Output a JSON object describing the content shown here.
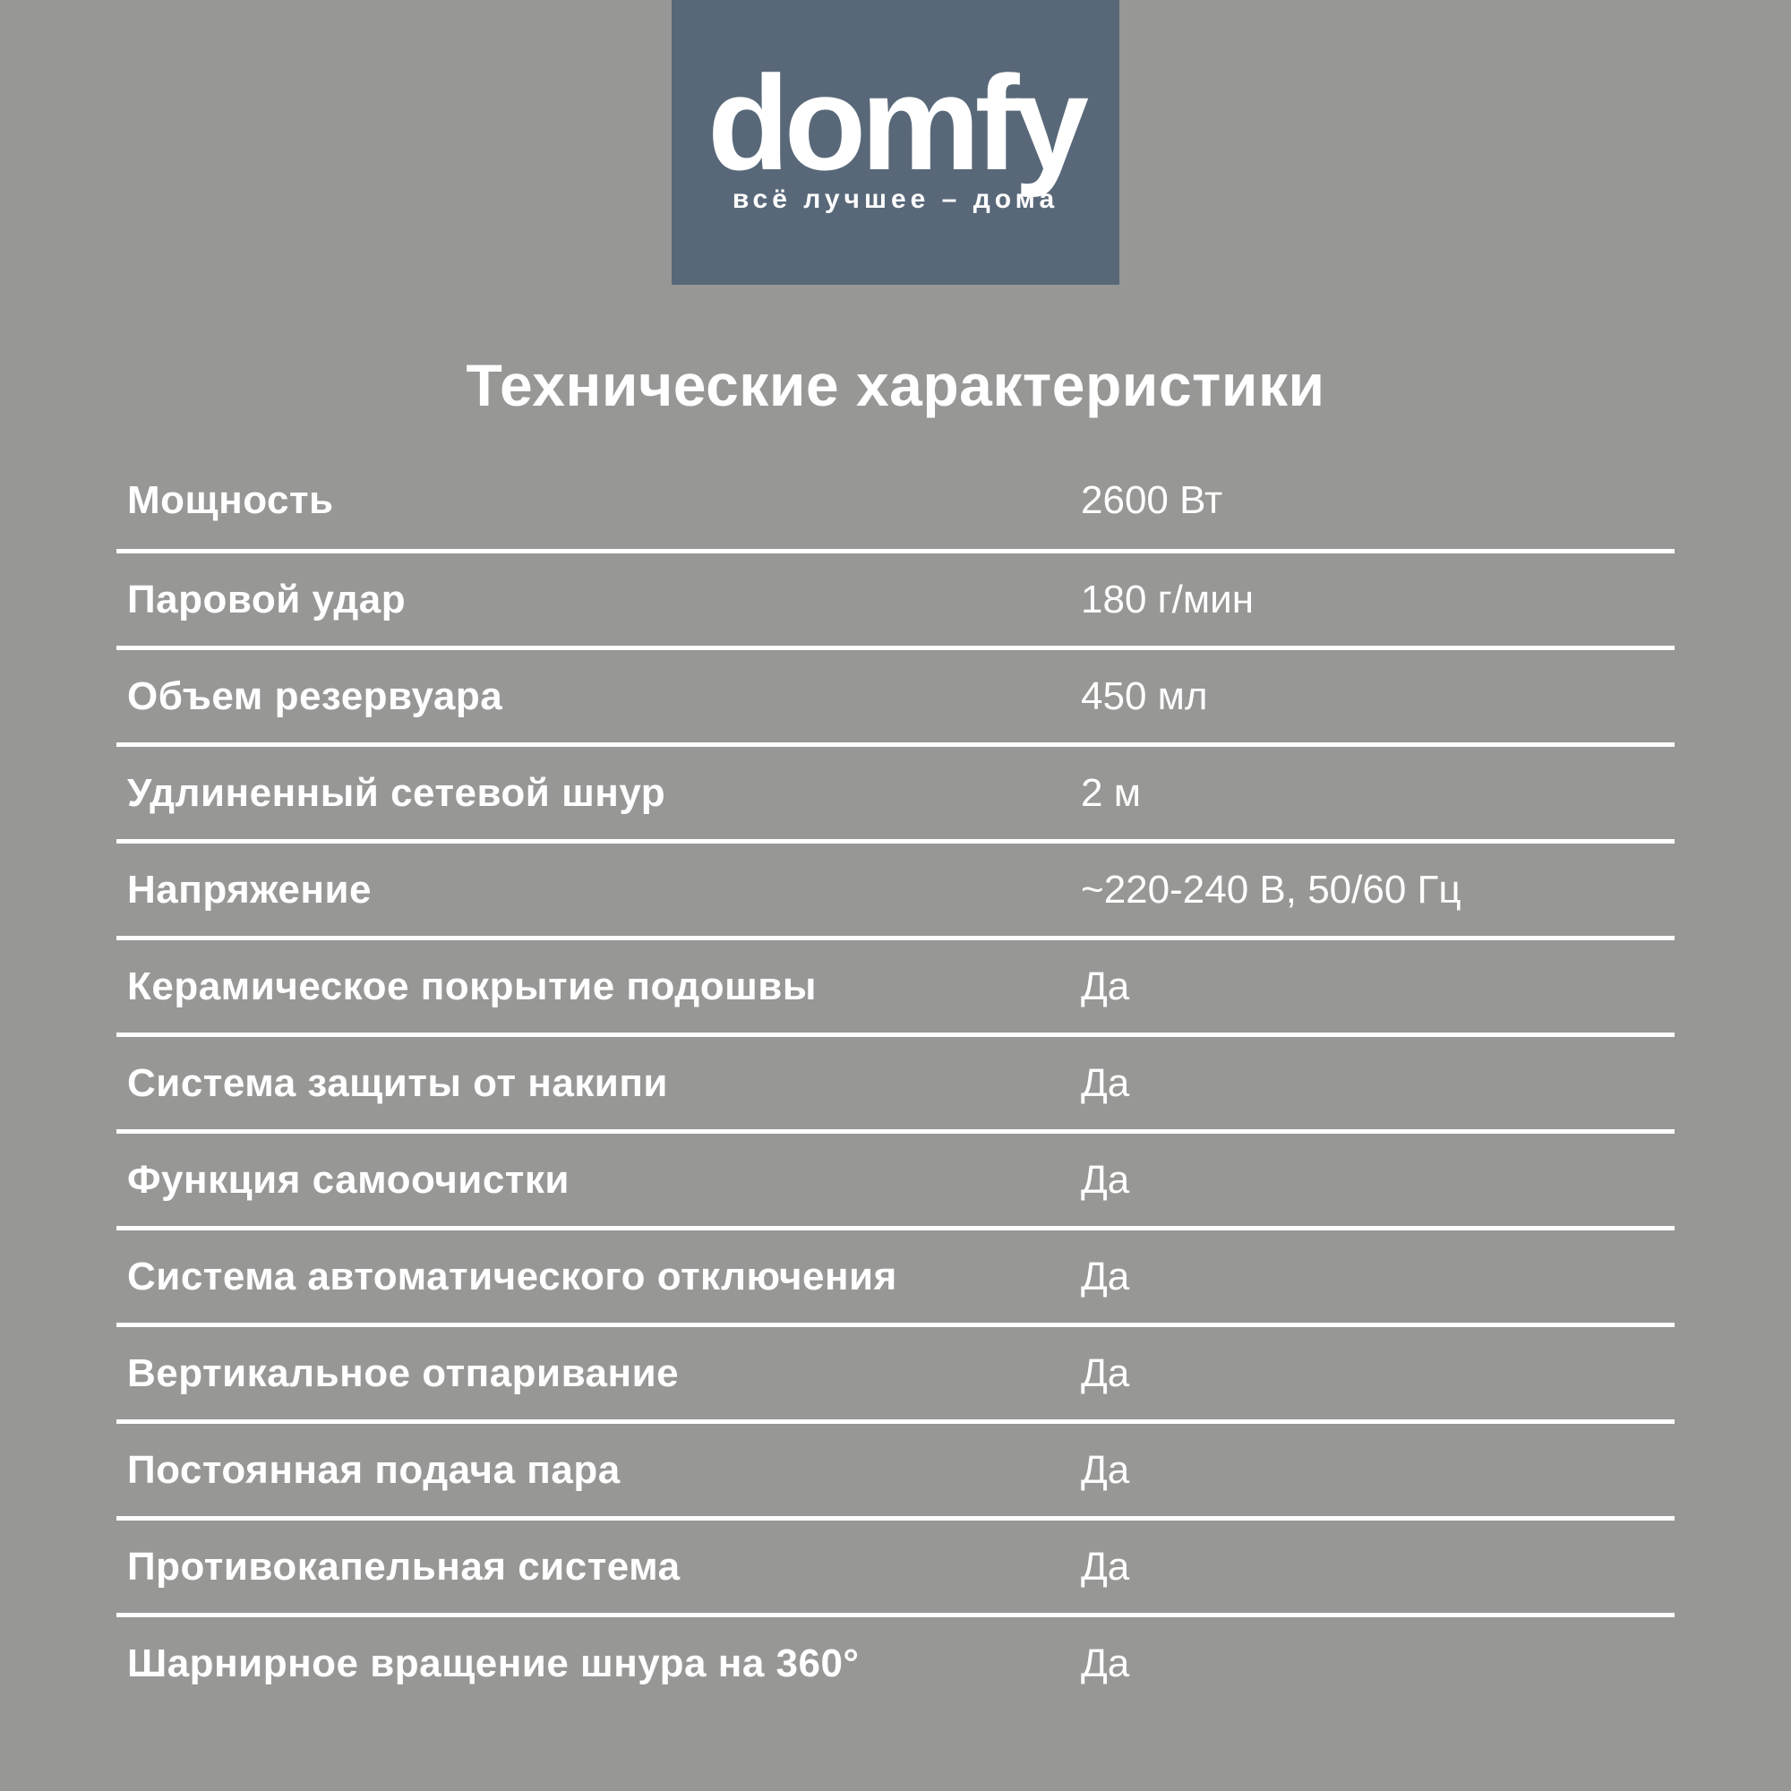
{
  "colors": {
    "background": "#979795",
    "logo_box": "#586879",
    "text": "#ffffff"
  },
  "logo": {
    "brand": "domfy",
    "tagline": "всё лучшее – дома"
  },
  "title": "Технические характеристики",
  "specs": [
    {
      "label": "Мощность",
      "value": "2600 Вт"
    },
    {
      "label": "Паровой удар",
      "value": "180 г/мин"
    },
    {
      "label": "Объем резервуара",
      "value": "450 мл"
    },
    {
      "label": "Удлиненный сетевой шнур",
      "value": "2 м"
    },
    {
      "label": "Напряжение",
      "value": "~220-240 В, 50/60 Гц"
    },
    {
      "label": "Керамическое покрытие подошвы",
      "value": "Да"
    },
    {
      "label": "Система защиты от накипи",
      "value": "Да"
    },
    {
      "label": "Функция самоочистки",
      "value": "Да"
    },
    {
      "label": "Система автоматического отключения",
      "value": "Да"
    },
    {
      "label": "Вертикальное отпаривание",
      "value": "Да"
    },
    {
      "label": "Постоянная подача пара",
      "value": "Да"
    },
    {
      "label": "Противокапельная система",
      "value": "Да"
    },
    {
      "label": "Шарнирное вращение шнура на 360°",
      "value": "Да"
    }
  ]
}
